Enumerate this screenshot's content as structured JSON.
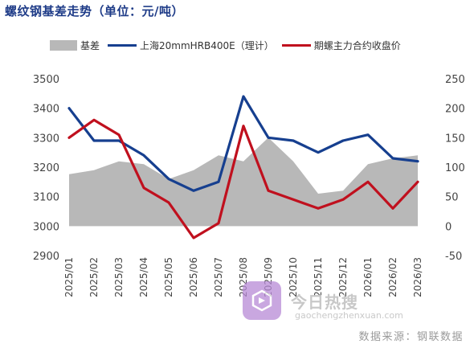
{
  "title": "螺纹钢基差走势（单位：元/吨）",
  "source": "数据来源：钢联数据",
  "watermark": {
    "name": "今日热搜",
    "url": "gaochengzhenxuan.com"
  },
  "colors": {
    "title": "#1f3c88",
    "basis": "#b8b8b8",
    "spot": "#163f8f",
    "futures": "#c0101e"
  },
  "chart_data": {
    "type": "line",
    "x": [
      "2025/01",
      "2025/02",
      "2025/03",
      "2025/04",
      "2025/05",
      "2025/06",
      "2025/07",
      "2025/08",
      "2025/09",
      "2025/10",
      "2025/11",
      "2025/12",
      "2026/01",
      "2026/02",
      "2026/03"
    ],
    "x_ticks": [
      "2025/01",
      "2025/02",
      "2025/03",
      "2025/04",
      "2025/05",
      "2025/06",
      "2025/07",
      "2025/08",
      "2025/09",
      "2025/10",
      "2025/11",
      "2025/12",
      "2026/01",
      "2026/02",
      "2026/03"
    ],
    "y_left": {
      "min": 2900,
      "max": 3500,
      "ticks": [
        2900,
        3000,
        3100,
        3200,
        3300,
        3400,
        3500
      ]
    },
    "y_right": {
      "min": -50,
      "max": 250,
      "ticks": [
        -50,
        0,
        50,
        100,
        150,
        200,
        250
      ]
    },
    "grid": false,
    "legend_position": "top",
    "series": [
      {
        "name": "基差",
        "axis": "right",
        "kind": "area",
        "color": "#b8b8b8",
        "values": [
          88,
          95,
          110,
          105,
          80,
          95,
          120,
          110,
          150,
          110,
          55,
          60,
          105,
          115,
          120
        ]
      },
      {
        "name": "上海20mmHRB400E（理计）",
        "axis": "left",
        "kind": "line",
        "color": "#163f8f",
        "values": [
          3400,
          3290,
          3290,
          3240,
          3160,
          3120,
          3150,
          3440,
          3300,
          3290,
          3250,
          3290,
          3310,
          3230,
          3220
        ]
      },
      {
        "name": "期螺主力合约收盘价",
        "axis": "left",
        "kind": "line",
        "color": "#c0101e",
        "values": [
          3300,
          3360,
          3310,
          3130,
          3080,
          2960,
          3010,
          3340,
          3120,
          3090,
          3060,
          3090,
          3150,
          3060,
          3150
        ]
      }
    ]
  }
}
